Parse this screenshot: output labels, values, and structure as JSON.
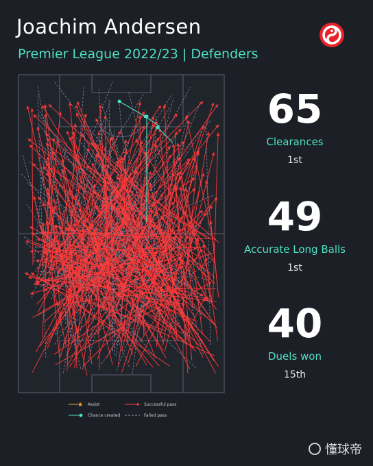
{
  "header": {
    "title": "Joachim Andersen",
    "subtitle": "Premier League 2022/23 | Defenders"
  },
  "colors": {
    "background": "#1c1f25",
    "accent": "#4fe0c5",
    "successful_pass": "#ff3b3b",
    "failed_pass": "#8f97b8",
    "assist": "#f2a63a",
    "logo_red": "#e8232c"
  },
  "logo": {
    "icon": "brand-logo-icon"
  },
  "stats": [
    {
      "value": "65",
      "label": "Clearances",
      "rank": "1st"
    },
    {
      "value": "49",
      "label": "Accurate Long Balls",
      "rank": "1st"
    },
    {
      "value": "40",
      "label": "Duels won",
      "rank": "15th"
    }
  ],
  "legend": {
    "assist": "Assist",
    "successful_pass": "Successful pass",
    "chance_created": "Chance created",
    "failed_pass": "Failed pass"
  },
  "watermark": {
    "text": "懂球帝",
    "icon": "football-icon"
  }
}
